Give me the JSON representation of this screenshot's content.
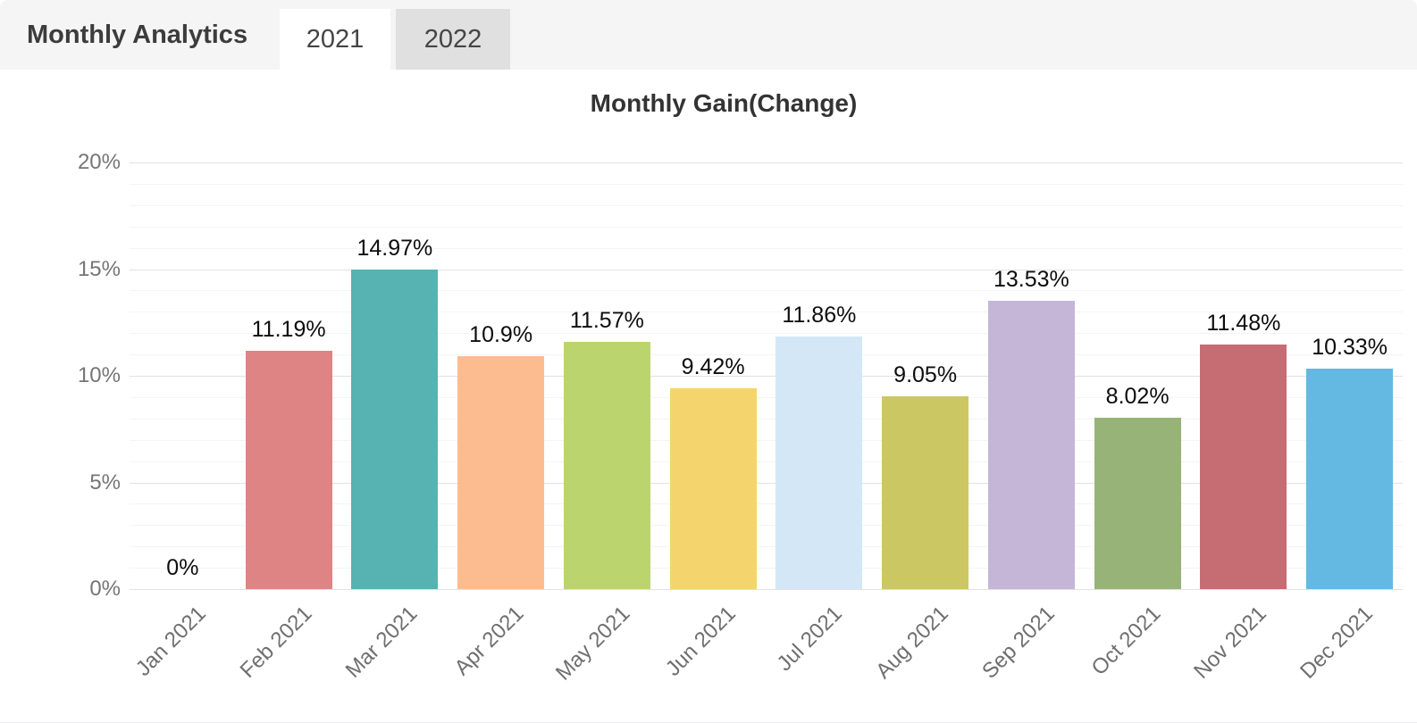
{
  "header": {
    "title": "Monthly Analytics",
    "tabs": [
      {
        "label": "2021",
        "active": true
      },
      {
        "label": "2022",
        "active": false
      }
    ]
  },
  "chart_data": {
    "type": "bar",
    "title": "Monthly Gain(Change)",
    "categories": [
      "Jan 2021",
      "Feb 2021",
      "Mar 2021",
      "Apr 2021",
      "May 2021",
      "Jun 2021",
      "Jul 2021",
      "Aug 2021",
      "Sep 2021",
      "Oct 2021",
      "Nov 2021",
      "Dec 2021"
    ],
    "values": [
      0,
      11.19,
      14.97,
      10.9,
      11.57,
      9.42,
      11.86,
      9.05,
      13.53,
      8.02,
      11.48,
      10.33
    ],
    "value_labels": [
      "0%",
      "11.19%",
      "14.97%",
      "10.9%",
      "11.57%",
      "9.42%",
      "11.86%",
      "9.05%",
      "13.53%",
      "8.02%",
      "11.48%",
      "10.33%"
    ],
    "bar_colors": [
      null,
      "#de8485",
      "#57b2b2",
      "#fdbc8f",
      "#bcd46d",
      "#f4d56d",
      "#d4e7f7",
      "#cbc763",
      "#c5b5d7",
      "#97b377",
      "#c56d73",
      "#64b9e2"
    ],
    "y_ticks": [
      {
        "value": 0,
        "label": "0%"
      },
      {
        "value": 5,
        "label": "5%"
      },
      {
        "value": 10,
        "label": "10%"
      },
      {
        "value": 15,
        "label": "15%"
      },
      {
        "value": 20,
        "label": "20%"
      }
    ],
    "ylim": [
      0,
      20
    ],
    "minor_grid_step": 1,
    "grid": true,
    "legend": "none",
    "xlabel": "",
    "ylabel": ""
  },
  "colors": {
    "header_bg": "#f5f5f6",
    "tab_active_bg": "#ffffff",
    "tab_inactive_bg": "#e0e0e1",
    "grid_major": "#e2e2e4",
    "grid_minor": "#f4f4f6",
    "axis_text": "#757575"
  }
}
